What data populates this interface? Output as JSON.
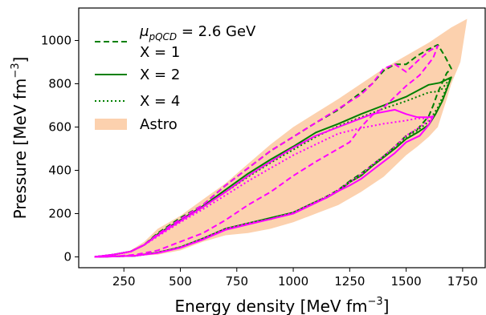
{
  "chart_data": {
    "type": "line",
    "title": "",
    "xlabel": "Energy density [MeV fm",
    "xlabel_sup": "−3",
    "xlabel_close": "]",
    "ylabel": "Pressure [MeV fm",
    "ylabel_sup": "−3",
    "ylabel_close": "]",
    "xlim": [
      50,
      1850
    ],
    "ylim": [
      -50,
      1150
    ],
    "x_ticks": [
      250,
      500,
      750,
      1000,
      1250,
      1500,
      1750
    ],
    "y_ticks": [
      0,
      200,
      400,
      600,
      800,
      1000
    ],
    "grid": false,
    "legend_position": "top-left",
    "legend": {
      "header_mu": "μ",
      "header_sub": "pQCD",
      "header_rest": " = 2.6 GeV",
      "entries": [
        {
          "label": "X = 1",
          "style": "dashed",
          "color": "#008000"
        },
        {
          "label": "X = 2",
          "style": "solid",
          "color": "#008000"
        },
        {
          "label": "X = 4",
          "style": "dotted",
          "color": "#008000"
        },
        {
          "label": "Astro",
          "style": "band",
          "color": "#fcd1ae"
        }
      ]
    },
    "band": {
      "name": "Astro",
      "color": "#fcd1ae",
      "upper": [
        [
          120,
          0
        ],
        [
          200,
          10
        ],
        [
          280,
          30
        ],
        [
          340,
          70
        ],
        [
          400,
          130
        ],
        [
          500,
          190
        ],
        [
          600,
          265
        ],
        [
          700,
          340
        ],
        [
          800,
          430
        ],
        [
          900,
          520
        ],
        [
          1000,
          600
        ],
        [
          1100,
          665
        ],
        [
          1200,
          730
        ],
        [
          1300,
          800
        ],
        [
          1400,
          870
        ],
        [
          1500,
          930
        ],
        [
          1600,
          990
        ],
        [
          1700,
          1060
        ],
        [
          1770,
          1100
        ]
      ],
      "lower": [
        [
          1770,
          1100
        ],
        [
          1740,
          900
        ],
        [
          1700,
          800
        ],
        [
          1680,
          730
        ],
        [
          1640,
          600
        ],
        [
          1600,
          555
        ],
        [
          1550,
          510
        ],
        [
          1500,
          470
        ],
        [
          1450,
          420
        ],
        [
          1400,
          370
        ],
        [
          1300,
          300
        ],
        [
          1200,
          240
        ],
        [
          1100,
          200
        ],
        [
          1000,
          160
        ],
        [
          900,
          130
        ],
        [
          800,
          110
        ],
        [
          700,
          100
        ],
        [
          600,
          70
        ],
        [
          500,
          30
        ],
        [
          400,
          10
        ],
        [
          300,
          5
        ],
        [
          200,
          0
        ],
        [
          120,
          0
        ]
      ]
    },
    "series": [
      {
        "color": "#008000",
        "style": "dashed",
        "values": [
          [
            120,
            0
          ],
          [
            200,
            10
          ],
          [
            280,
            25
          ],
          [
            340,
            55
          ],
          [
            400,
            110
          ],
          [
            500,
            180
          ],
          [
            600,
            240
          ],
          [
            700,
            330
          ],
          [
            800,
            410
          ],
          [
            900,
            490
          ],
          [
            1000,
            555
          ],
          [
            1100,
            620
          ],
          [
            1200,
            680
          ],
          [
            1300,
            760
          ],
          [
            1350,
            800
          ],
          [
            1400,
            860
          ],
          [
            1450,
            890
          ],
          [
            1500,
            890
          ],
          [
            1550,
            930
          ],
          [
            1600,
            960
          ],
          [
            1640,
            980
          ],
          [
            1670,
            930
          ],
          [
            1700,
            870
          ],
          [
            1680,
            850
          ],
          [
            1640,
            760
          ],
          [
            1620,
            700
          ],
          [
            1600,
            650
          ],
          [
            1550,
            590
          ],
          [
            1500,
            560
          ],
          [
            1450,
            510
          ],
          [
            1400,
            465
          ],
          [
            1350,
            425
          ],
          [
            1300,
            385
          ],
          [
            1250,
            350
          ],
          [
            1200,
            310
          ],
          [
            1150,
            280
          ],
          [
            1100,
            255
          ],
          [
            1000,
            205
          ],
          [
            900,
            175
          ],
          [
            800,
            155
          ],
          [
            700,
            130
          ],
          [
            600,
            85
          ],
          [
            500,
            45
          ],
          [
            400,
            20
          ],
          [
            300,
            5
          ],
          [
            200,
            2
          ],
          [
            120,
            0
          ]
        ]
      },
      {
        "color": "#008000",
        "style": "solid",
        "values": [
          [
            120,
            0
          ],
          [
            200,
            10
          ],
          [
            280,
            25
          ],
          [
            340,
            55
          ],
          [
            400,
            105
          ],
          [
            500,
            170
          ],
          [
            600,
            235
          ],
          [
            700,
            310
          ],
          [
            800,
            385
          ],
          [
            900,
            450
          ],
          [
            1000,
            510
          ],
          [
            1100,
            575
          ],
          [
            1200,
            615
          ],
          [
            1300,
            660
          ],
          [
            1400,
            700
          ],
          [
            1500,
            740
          ],
          [
            1600,
            795
          ],
          [
            1650,
            805
          ],
          [
            1700,
            830
          ],
          [
            1660,
            720
          ],
          [
            1630,
            660
          ],
          [
            1600,
            610
          ],
          [
            1550,
            575
          ],
          [
            1500,
            545
          ],
          [
            1450,
            500
          ],
          [
            1400,
            460
          ],
          [
            1350,
            420
          ],
          [
            1300,
            375
          ],
          [
            1250,
            345
          ],
          [
            1200,
            305
          ],
          [
            1150,
            275
          ],
          [
            1100,
            255
          ],
          [
            1000,
            205
          ],
          [
            900,
            180
          ],
          [
            800,
            155
          ],
          [
            700,
            130
          ],
          [
            600,
            85
          ],
          [
            500,
            45
          ],
          [
            400,
            20
          ],
          [
            300,
            5
          ],
          [
            200,
            2
          ],
          [
            120,
            0
          ]
        ]
      },
      {
        "color": "#008000",
        "style": "dotted",
        "values": [
          [
            120,
            0
          ],
          [
            200,
            10
          ],
          [
            280,
            25
          ],
          [
            340,
            55
          ],
          [
            400,
            100
          ],
          [
            500,
            165
          ],
          [
            600,
            230
          ],
          [
            700,
            300
          ],
          [
            800,
            370
          ],
          [
            900,
            435
          ],
          [
            1000,
            495
          ],
          [
            1100,
            555
          ],
          [
            1200,
            605
          ],
          [
            1300,
            645
          ],
          [
            1400,
            685
          ],
          [
            1500,
            720
          ],
          [
            1600,
            760
          ],
          [
            1650,
            765
          ],
          [
            1700,
            830
          ],
          [
            1640,
            690
          ],
          [
            1600,
            625
          ],
          [
            1550,
            585
          ],
          [
            1500,
            555
          ],
          [
            1450,
            510
          ],
          [
            1400,
            465
          ],
          [
            1350,
            425
          ],
          [
            1300,
            380
          ],
          [
            1250,
            345
          ],
          [
            1200,
            310
          ],
          [
            1150,
            280
          ],
          [
            1100,
            255
          ],
          [
            1000,
            205
          ],
          [
            900,
            175
          ],
          [
            800,
            155
          ],
          [
            700,
            130
          ],
          [
            600,
            85
          ],
          [
            500,
            45
          ],
          [
            400,
            20
          ],
          [
            300,
            5
          ],
          [
            200,
            2
          ],
          [
            120,
            0
          ]
        ]
      },
      {
        "color": "#ff00ff",
        "style": "dashed",
        "values": [
          [
            120,
            0
          ],
          [
            200,
            10
          ],
          [
            280,
            25
          ],
          [
            340,
            55
          ],
          [
            400,
            105
          ],
          [
            500,
            175
          ],
          [
            600,
            240
          ],
          [
            700,
            330
          ],
          [
            800,
            410
          ],
          [
            900,
            490
          ],
          [
            1000,
            555
          ],
          [
            1100,
            620
          ],
          [
            1200,
            685
          ],
          [
            1300,
            750
          ],
          [
            1350,
            800
          ],
          [
            1400,
            870
          ],
          [
            1450,
            890
          ],
          [
            1500,
            855
          ],
          [
            1550,
            905
          ],
          [
            1600,
            950
          ],
          [
            1640,
            975
          ],
          [
            1620,
            920
          ],
          [
            1560,
            840
          ],
          [
            1500,
            790
          ],
          [
            1450,
            740
          ],
          [
            1400,
            690
          ],
          [
            1350,
            655
          ],
          [
            1300,
            600
          ],
          [
            1250,
            530
          ],
          [
            1200,
            500
          ],
          [
            1100,
            440
          ],
          [
            1000,
            375
          ],
          [
            900,
            300
          ],
          [
            800,
            240
          ],
          [
            700,
            170
          ],
          [
            600,
            110
          ],
          [
            500,
            70
          ],
          [
            450,
            50
          ],
          [
            400,
            30
          ],
          [
            300,
            10
          ],
          [
            200,
            2
          ],
          [
            120,
            0
          ]
        ]
      },
      {
        "color": "#ff00ff",
        "style": "solid",
        "values": [
          [
            120,
            0
          ],
          [
            200,
            10
          ],
          [
            280,
            25
          ],
          [
            340,
            55
          ],
          [
            400,
            100
          ],
          [
            500,
            165
          ],
          [
            600,
            230
          ],
          [
            700,
            300
          ],
          [
            800,
            375
          ],
          [
            900,
            440
          ],
          [
            1000,
            505
          ],
          [
            1100,
            560
          ],
          [
            1200,
            600
          ],
          [
            1300,
            640
          ],
          [
            1350,
            660
          ],
          [
            1450,
            680
          ],
          [
            1500,
            660
          ],
          [
            1550,
            645
          ],
          [
            1600,
            645
          ],
          [
            1620,
            650
          ],
          [
            1600,
            610
          ],
          [
            1560,
            560
          ],
          [
            1500,
            530
          ],
          [
            1450,
            480
          ],
          [
            1400,
            440
          ],
          [
            1350,
            400
          ],
          [
            1300,
            360
          ],
          [
            1250,
            330
          ],
          [
            1200,
            305
          ],
          [
            1150,
            275
          ],
          [
            1100,
            250
          ],
          [
            1000,
            200
          ],
          [
            900,
            175
          ],
          [
            800,
            150
          ],
          [
            700,
            125
          ],
          [
            600,
            80
          ],
          [
            500,
            42
          ],
          [
            400,
            18
          ],
          [
            300,
            5
          ],
          [
            200,
            2
          ],
          [
            120,
            0
          ]
        ]
      },
      {
        "color": "#ff00ff",
        "style": "dotted",
        "values": [
          [
            120,
            0
          ],
          [
            200,
            10
          ],
          [
            280,
            25
          ],
          [
            340,
            55
          ],
          [
            400,
            95
          ],
          [
            500,
            160
          ],
          [
            600,
            220
          ],
          [
            700,
            285
          ],
          [
            800,
            350
          ],
          [
            900,
            410
          ],
          [
            1000,
            470
          ],
          [
            1100,
            520
          ],
          [
            1200,
            570
          ],
          [
            1300,
            595
          ],
          [
            1400,
            615
          ],
          [
            1500,
            630
          ],
          [
            1550,
            640
          ],
          [
            1600,
            640
          ],
          [
            1620,
            645
          ],
          [
            1560,
            600
          ],
          [
            1500,
            560
          ],
          [
            1450,
            510
          ],
          [
            1400,
            465
          ],
          [
            1350,
            425
          ],
          [
            1300,
            380
          ],
          [
            1250,
            345
          ],
          [
            1200,
            310
          ],
          [
            1150,
            280
          ],
          [
            1100,
            255
          ],
          [
            1000,
            205
          ],
          [
            900,
            175
          ],
          [
            800,
            155
          ],
          [
            700,
            130
          ],
          [
            600,
            85
          ],
          [
            500,
            45
          ],
          [
            400,
            20
          ],
          [
            300,
            5
          ],
          [
            200,
            2
          ],
          [
            120,
            0
          ]
        ]
      }
    ]
  }
}
